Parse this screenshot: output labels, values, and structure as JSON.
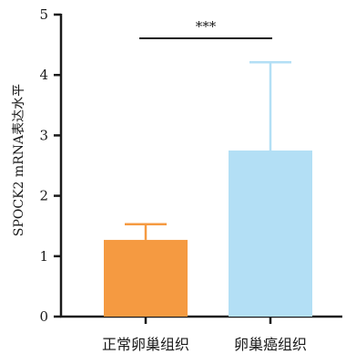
{
  "chart_data": {
    "type": "bar",
    "categories": [
      "正常卵巢组织",
      "卵巢癌组织"
    ],
    "values": [
      1.27,
      2.75
    ],
    "error_upper": [
      1.53,
      4.21
    ],
    "colors": [
      "#f59a41",
      "#b3dff5"
    ],
    "ylabel": "SPOCK2 mRNA表达水平",
    "xlabel": "",
    "ylim": [
      0,
      5
    ],
    "yticks": [
      0,
      1,
      2,
      3,
      4,
      5
    ],
    "significance": "***",
    "grid": false
  }
}
